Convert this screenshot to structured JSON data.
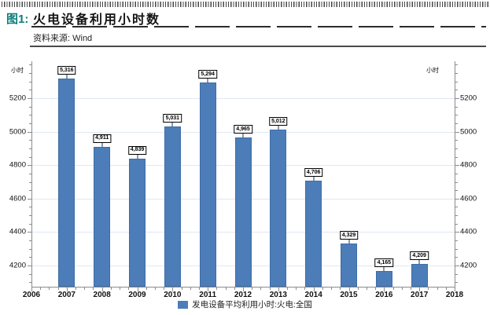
{
  "header": {
    "figure_label": "图1:",
    "title": "火电设备利用小时数",
    "source": "资料来源: Wind"
  },
  "chart_data": {
    "type": "bar",
    "title": "火电设备利用小时数",
    "unit_left": "小时",
    "unit_right": "小时",
    "series_name": "发电设备平均利用小时:火电:全国",
    "categories": [
      "2007",
      "2008",
      "2009",
      "2010",
      "2011",
      "2012",
      "2013",
      "2014",
      "2015",
      "2016",
      "2017"
    ],
    "values": [
      5316,
      4911,
      4839,
      5031,
      5294,
      4965,
      5012,
      4706,
      4329,
      4165,
      4209
    ],
    "value_labels": [
      "5,316",
      "4,911",
      "4,839",
      "5,031",
      "5,294",
      "4,965",
      "5,012",
      "4,706",
      "4,329",
      "4,165",
      "4,209"
    ],
    "x_tick_labels": [
      "2006",
      "2007",
      "2008",
      "2009",
      "2010",
      "2011",
      "2012",
      "2013",
      "2014",
      "2015",
      "2016",
      "2017",
      "2018"
    ],
    "x_range": [
      2006,
      2018
    ],
    "y_ticks": [
      4200,
      4400,
      4600,
      4800,
      5000,
      5200
    ],
    "y_minor_step": 50,
    "ylim": [
      4073,
      5421
    ],
    "grid": true,
    "legend_position": "bottom",
    "bar_color": "#4c7db9"
  },
  "colors": {
    "accent_teal": "#0e7c7c",
    "bar": "#4c7db9",
    "grid": "#dfe8f3",
    "axis": "#8c8c8c"
  }
}
